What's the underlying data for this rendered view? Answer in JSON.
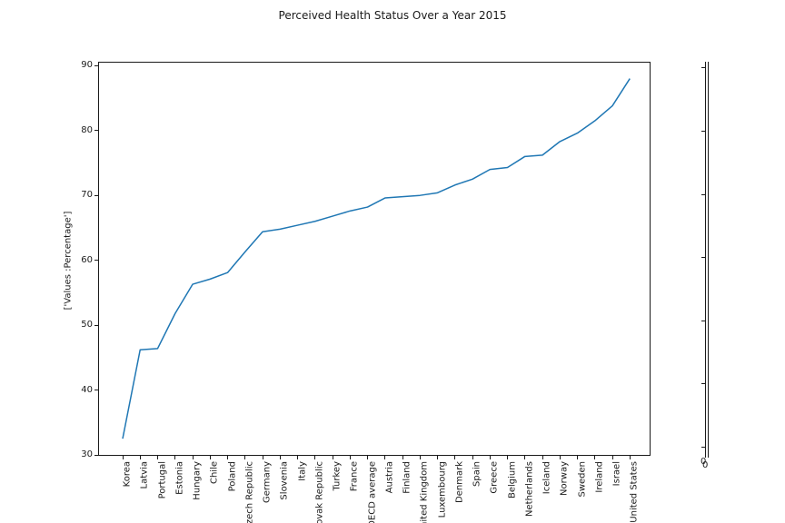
{
  "title": "Perceived Health Status Over a Year 2015",
  "chart_data": {
    "type": "line",
    "title": "Perceived Health Status Over a Year 2015",
    "xlabel": "",
    "ylabel": "['Values :Percentage']",
    "ylim": [
      30,
      90.6
    ],
    "yticks": [
      30,
      40,
      50,
      60,
      70,
      80,
      90
    ],
    "grid": false,
    "legend": null,
    "line_color": "#1f77b4",
    "axis_color": "#1a1a1a",
    "categories": [
      "Korea",
      "Latvia",
      "Portugal",
      "Estonia",
      "Hungary",
      "Chile",
      "Poland",
      "Czech Republic",
      "Germany",
      "Slovenia",
      "Italy",
      "Slovak Republic",
      "Turkey",
      "France",
      "OECD average",
      "Austria",
      "Finland",
      "United Kingdom",
      "Luxembourg",
      "Denmark",
      "Spain",
      "Greece",
      "Belgium",
      "Netherlands",
      "Iceland",
      "Norway",
      "Sweden",
      "Ireland",
      "Israel",
      "United States"
    ],
    "values": [
      32.5,
      46.2,
      46.4,
      51.8,
      56.3,
      57.1,
      58.1,
      61.3,
      64.4,
      64.8,
      65.4,
      66.0,
      66.8,
      67.6,
      68.2,
      69.6,
      69.8,
      70.0,
      70.4,
      71.6,
      72.5,
      74.0,
      74.3,
      76.0,
      76.2,
      78.3,
      79.6,
      81.5,
      83.8,
      88.0
    ],
    "secondary_axis": {
      "tick_count": 7,
      "bottom_labels": [
        "0",
        "0"
      ]
    }
  }
}
